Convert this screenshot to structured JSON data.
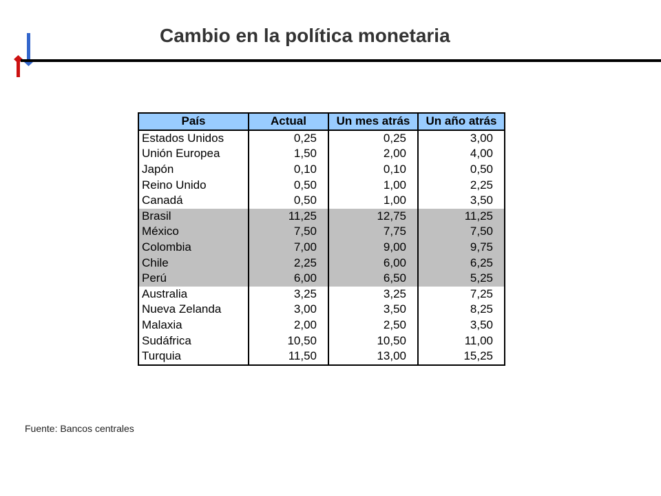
{
  "slide": {
    "title": "Cambio en la política monetaria",
    "source": "Fuente: Bancos centrales",
    "colors": {
      "header_fill": "#99ccff",
      "shaded_row_fill": "#c0c0c0",
      "logo_red": "#cc1111",
      "logo_blue": "#3366cc"
    }
  },
  "table": {
    "headers": [
      "País",
      "Actual",
      "Un mes atrás",
      "Un año atrás"
    ],
    "rows": [
      {
        "country": "Estados Unidos",
        "actual": "0,25",
        "mes": "0,25",
        "anio": "3,00",
        "shaded": false
      },
      {
        "country": "Unión Europea",
        "actual": "1,50",
        "mes": "2,00",
        "anio": "4,00",
        "shaded": false
      },
      {
        "country": "Japón",
        "actual": "0,10",
        "mes": "0,10",
        "anio": "0,50",
        "shaded": false
      },
      {
        "country": "Reino Unido",
        "actual": "0,50",
        "mes": "1,00",
        "anio": "2,25",
        "shaded": false
      },
      {
        "country": "Canadá",
        "actual": "0,50",
        "mes": "1,00",
        "anio": "3,50",
        "shaded": false
      },
      {
        "country": "Brasil",
        "actual": "11,25",
        "mes": "12,75",
        "anio": "11,25",
        "shaded": true
      },
      {
        "country": "México",
        "actual": "7,50",
        "mes": "7,75",
        "anio": "7,50",
        "shaded": true
      },
      {
        "country": "Colombia",
        "actual": "7,00",
        "mes": "9,00",
        "anio": "9,75",
        "shaded": true
      },
      {
        "country": "Chile",
        "actual": "2,25",
        "mes": "6,00",
        "anio": "6,25",
        "shaded": true
      },
      {
        "country": "Perú",
        "actual": "6,00",
        "mes": "6,50",
        "anio": "5,25",
        "shaded": true
      },
      {
        "country": "Australia",
        "actual": "3,25",
        "mes": "3,25",
        "anio": "7,25",
        "shaded": false
      },
      {
        "country": "Nueva Zelanda",
        "actual": "3,00",
        "mes": "3,50",
        "anio": "8,25",
        "shaded": false
      },
      {
        "country": "Malaxia",
        "actual": "2,00",
        "mes": "2,50",
        "anio": "3,50",
        "shaded": false
      },
      {
        "country": "Sudáfrica",
        "actual": "10,50",
        "mes": "10,50",
        "anio": "11,00",
        "shaded": false
      },
      {
        "country": "Turquia",
        "actual": "11,50",
        "mes": "13,00",
        "anio": "15,25",
        "shaded": false
      }
    ]
  }
}
